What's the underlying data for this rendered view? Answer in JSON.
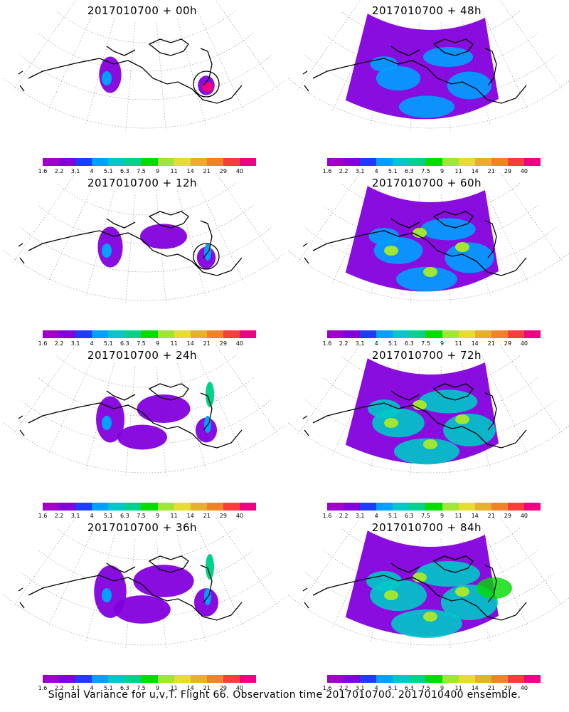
{
  "colorbar": {
    "colors": [
      "#a000c8",
      "#8200dc",
      "#1e3cff",
      "#00a0ff",
      "#00c8c8",
      "#00d28c",
      "#00dc00",
      "#a0e632",
      "#e6dc32",
      "#e6af2d",
      "#f08228",
      "#fa3c3c",
      "#f00082"
    ],
    "labels": [
      "1.6",
      "2.2",
      "3.1",
      "4",
      "5.1",
      "6.3",
      "7.5",
      "9",
      "11",
      "14",
      "21",
      "29",
      "40"
    ]
  },
  "panels": [
    {
      "title": "2017010700 + 00h",
      "level": 0
    },
    {
      "title": "2017010700 + 48h",
      "level": 4
    },
    {
      "title": "2017010700 + 12h",
      "level": 1
    },
    {
      "title": "2017010700 + 60h",
      "level": 5
    },
    {
      "title": "2017010700 + 24h",
      "level": 2
    },
    {
      "title": "2017010700 + 72h",
      "level": 6
    },
    {
      "title": "2017010700 + 36h",
      "level": 3
    },
    {
      "title": "2017010700 + 84h",
      "level": 7
    }
  ],
  "footer": "Signal Variance for u,v,T. Flight 66. Observation time 2017010700. 2017010400 ensemble."
}
